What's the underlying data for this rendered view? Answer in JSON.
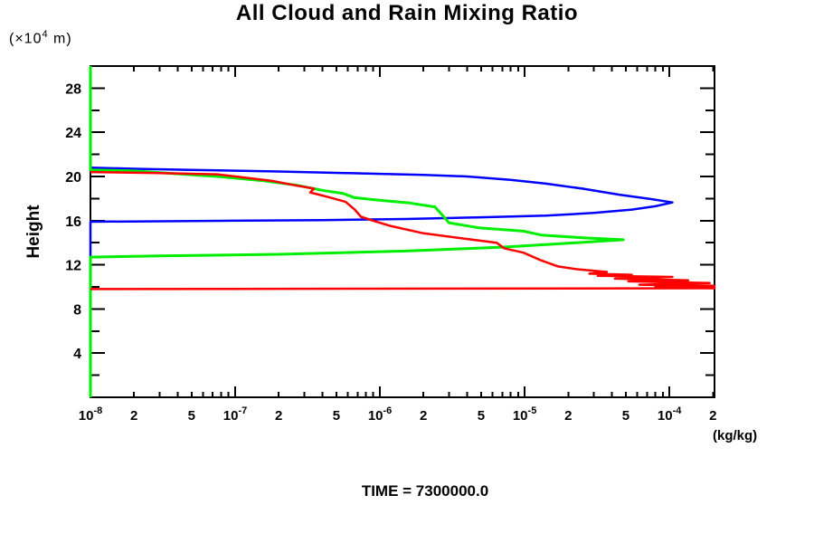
{
  "chart_data": {
    "type": "line",
    "title": "All Cloud and Rain Mixing Ratio",
    "xlabel": "(kg/kg)",
    "ylabel": "Height",
    "y_unit_prefix": "(×10",
    "y_unit_exp": "4",
    "y_unit_suffix": " m)",
    "time_label": "TIME = 7300000.0",
    "x_scale": "log",
    "xlim": [
      1e-08,
      0.000205
    ],
    "ylim": [
      0,
      30
    ],
    "grid": false,
    "legend": "none",
    "y_minor_step": 2,
    "y_labeled_ticks": [
      4,
      8,
      12,
      16,
      20,
      24,
      28
    ],
    "x_tick_labels": [
      {
        "v": 1e-08,
        "base": "10",
        "sup": "-8"
      },
      {
        "v": 2e-08,
        "base": "2"
      },
      {
        "v": 5e-08,
        "base": "5"
      },
      {
        "v": 1e-07,
        "base": "10",
        "sup": "-7"
      },
      {
        "v": 2e-07,
        "base": "2"
      },
      {
        "v": 5e-07,
        "base": "5"
      },
      {
        "v": 1e-06,
        "base": "10",
        "sup": "-6"
      },
      {
        "v": 2e-06,
        "base": "2"
      },
      {
        "v": 5e-06,
        "base": "5"
      },
      {
        "v": 1e-05,
        "base": "10",
        "sup": "-5"
      },
      {
        "v": 2e-05,
        "base": "2"
      },
      {
        "v": 5e-05,
        "base": "5"
      },
      {
        "v": 0.0001,
        "base": "10",
        "sup": "-4"
      },
      {
        "v": 0.0002,
        "base": "2"
      }
    ],
    "series": [
      {
        "name": "blue-curve",
        "color": "#0000ff",
        "width": 2.5,
        "points": [
          [
            1e-08,
            20.8
          ],
          [
            2e-08,
            20.7
          ],
          [
            5e-08,
            20.6
          ],
          [
            2e-07,
            20.45
          ],
          [
            6e-07,
            20.3
          ],
          [
            2e-06,
            20.15
          ],
          [
            4e-06,
            20.0
          ],
          [
            8e-06,
            19.7
          ],
          [
            1.4e-05,
            19.35
          ],
          [
            2.5e-05,
            18.9
          ],
          [
            4.5e-05,
            18.35
          ],
          [
            7.5e-05,
            17.95
          ],
          [
            0.000105,
            17.65
          ],
          [
            8e-05,
            17.3
          ],
          [
            5.5e-05,
            17.0
          ],
          [
            3e-05,
            16.7
          ],
          [
            1.4e-05,
            16.45
          ],
          [
            5e-06,
            16.3
          ],
          [
            1.5e-06,
            16.15
          ],
          [
            4e-07,
            16.05
          ],
          [
            8e-08,
            15.98
          ],
          [
            1e-08,
            15.9
          ],
          [
            1e-08,
            0
          ]
        ]
      },
      {
        "name": "green-curve",
        "color": "#00ee00",
        "width": 3,
        "points": [
          [
            1e-08,
            30
          ],
          [
            1e-08,
            20.6
          ],
          [
            2e-08,
            20.5
          ],
          [
            7.5e-08,
            20.0
          ],
          [
            1.6e-07,
            19.6
          ],
          [
            2.7e-07,
            19.2
          ],
          [
            4e-07,
            18.75
          ],
          [
            5.6e-07,
            18.45
          ],
          [
            6.6e-07,
            18.1
          ],
          [
            9e-07,
            17.9
          ],
          [
            1.6e-06,
            17.6
          ],
          [
            2.4e-06,
            17.25
          ],
          [
            2.7e-06,
            16.5
          ],
          [
            3e-06,
            15.8
          ],
          [
            4.8e-06,
            15.35
          ],
          [
            9.8e-06,
            15.05
          ],
          [
            1.3e-05,
            14.7
          ],
          [
            2.5e-05,
            14.45
          ],
          [
            4.8e-05,
            14.27
          ],
          [
            2e-05,
            13.95
          ],
          [
            7e-06,
            13.6
          ],
          [
            1.5e-06,
            13.25
          ],
          [
            2e-07,
            12.95
          ],
          [
            3e-08,
            12.8
          ],
          [
            1e-08,
            12.7
          ],
          [
            1e-08,
            0
          ]
        ]
      },
      {
        "name": "red-curve",
        "color": "#ff0000",
        "width": 2.5,
        "points": [
          [
            1e-08,
            20.4
          ],
          [
            3e-08,
            20.3
          ],
          [
            7.5e-08,
            20.2
          ],
          [
            1.8e-07,
            19.6
          ],
          [
            2.6e-07,
            19.2
          ],
          [
            3.5e-07,
            18.9
          ],
          [
            3.3e-07,
            18.55
          ],
          [
            3.8e-07,
            18.35
          ],
          [
            4.5e-07,
            18.1
          ],
          [
            5.8e-07,
            17.7
          ],
          [
            6.7e-07,
            17.0
          ],
          [
            7.4e-07,
            16.35
          ],
          [
            9.2e-07,
            15.95
          ],
          [
            1.2e-06,
            15.5
          ],
          [
            2e-06,
            14.85
          ],
          [
            4.2e-06,
            14.3
          ],
          [
            6.4e-06,
            14.0
          ],
          [
            7.2e-06,
            13.5
          ],
          [
            9.8e-06,
            13.1
          ],
          [
            1.3e-05,
            12.4
          ],
          [
            1.7e-05,
            11.85
          ],
          [
            2.3e-05,
            11.6
          ],
          [
            3.7e-05,
            11.35
          ],
          [
            2.8e-05,
            11.2
          ],
          [
            5.5e-05,
            11.1
          ],
          [
            3.2e-05,
            11.0
          ],
          [
            0.000105,
            10.9
          ],
          [
            4.2e-05,
            10.75
          ],
          [
            0.000135,
            10.6
          ],
          [
            5.2e-05,
            10.5
          ],
          [
            0.00019,
            10.35
          ],
          [
            6.2e-05,
            10.2
          ],
          [
            0.000205,
            10.1
          ],
          [
            8e-05,
            10.0
          ],
          [
            0.000205,
            9.95
          ],
          [
            0.000205,
            9.88
          ],
          [
            1e-08,
            9.8
          ]
        ]
      }
    ]
  }
}
